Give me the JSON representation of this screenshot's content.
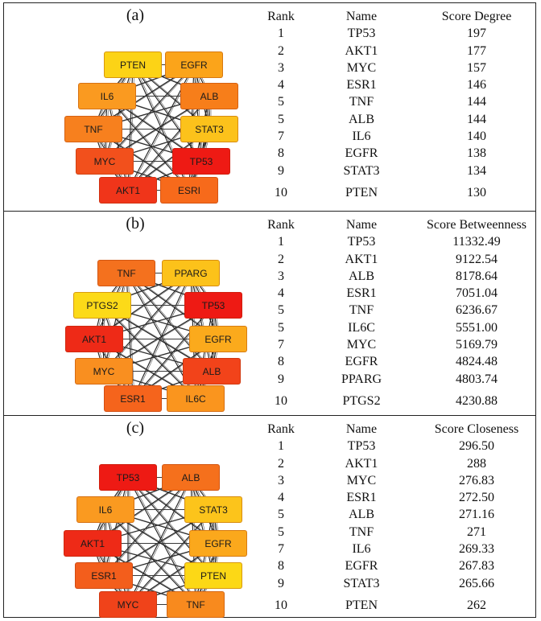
{
  "figure": {
    "panels": [
      {
        "label": "(a)",
        "table": {
          "headers": [
            "Rank",
            "Name",
            "Score Degree"
          ],
          "rows": [
            [
              "1",
              "TP53",
              "197"
            ],
            [
              "2",
              "AKT1",
              "177"
            ],
            [
              "3",
              "MYC",
              "157"
            ],
            [
              "4",
              "ESR1",
              "146"
            ],
            [
              "5",
              "TNF",
              "144"
            ],
            [
              "5",
              "ALB",
              "144"
            ],
            [
              "7",
              "IL6",
              "140"
            ],
            [
              "8",
              "EGFR",
              "138"
            ],
            [
              "9",
              "STAT3",
              "134"
            ],
            [
              "10",
              "PTEN",
              "130"
            ]
          ]
        },
        "network": {
          "nodes": [
            {
              "label": "PTEN",
              "color": "#FCD316"
            },
            {
              "label": "EGFR",
              "color": "#FBA41A"
            },
            {
              "label": "ALB",
              "color": "#F77E1A"
            },
            {
              "label": "STAT3",
              "color": "#FCC21B"
            },
            {
              "label": "TP53",
              "color": "#EE1A14"
            },
            {
              "label": "ESRI",
              "color": "#F76A1B"
            },
            {
              "label": "AKT1",
              "color": "#F0351A"
            },
            {
              "label": "MYC",
              "color": "#F2501C"
            },
            {
              "label": "TNF",
              "color": "#F7801E"
            },
            {
              "label": "IL6",
              "color": "#FA9A20"
            }
          ]
        }
      },
      {
        "label": "(b)",
        "table": {
          "headers": [
            "Rank",
            "Name",
            "Score Betweenness"
          ],
          "rows": [
            [
              "1",
              "TP53",
              "11332.49"
            ],
            [
              "2",
              "AKT1",
              "9122.54"
            ],
            [
              "3",
              "ALB",
              "8178.64"
            ],
            [
              "4",
              "ESR1",
              "7051.04"
            ],
            [
              "5",
              "TNF",
              "6236.67"
            ],
            [
              "5",
              "IL6C",
              "5551.00"
            ],
            [
              "7",
              "MYC",
              "5169.79"
            ],
            [
              "8",
              "EGFR",
              "4824.48"
            ],
            [
              "9",
              "PPARG",
              "4803.74"
            ],
            [
              "10",
              "PTGS2",
              "4230.88"
            ]
          ]
        },
        "network": {
          "nodes": [
            {
              "label": "TNF",
              "color": "#F4711E"
            },
            {
              "label": "PPARG",
              "color": "#FCC21A"
            },
            {
              "label": "TP53",
              "color": "#EE1A14"
            },
            {
              "label": "EGFR",
              "color": "#FBAA1C"
            },
            {
              "label": "ALB",
              "color": "#F2431A"
            },
            {
              "label": "IL6C",
              "color": "#FA951E"
            },
            {
              "label": "ESR1",
              "color": "#F5641C"
            },
            {
              "label": "MYC",
              "color": "#F98F20"
            },
            {
              "label": "AKT1",
              "color": "#EE2A17"
            },
            {
              "label": "PTGS2",
              "color": "#FCDA18"
            }
          ]
        }
      },
      {
        "label": "(c)",
        "table": {
          "headers": [
            "Rank",
            "Name",
            "Score Closeness"
          ],
          "rows": [
            [
              "1",
              "TP53",
              "296.50"
            ],
            [
              "2",
              "AKT1",
              "288"
            ],
            [
              "3",
              "MYC",
              "276.83"
            ],
            [
              "4",
              "ESR1",
              "272.50"
            ],
            [
              "5",
              "ALB",
              "271.16"
            ],
            [
              "5",
              "TNF",
              "271"
            ],
            [
              "7",
              "IL6",
              "269.33"
            ],
            [
              "8",
              "EGFR",
              "267.83"
            ],
            [
              "9",
              "STAT3",
              "265.66"
            ],
            [
              "10",
              "PTEN",
              "262"
            ]
          ]
        },
        "network": {
          "nodes": [
            {
              "label": "TP53",
              "color": "#EE1A14"
            },
            {
              "label": "ALB",
              "color": "#F5701C"
            },
            {
              "label": "STAT3",
              "color": "#FCC41B"
            },
            {
              "label": "EGFR",
              "color": "#FBA81C"
            },
            {
              "label": "PTEN",
              "color": "#FCD816"
            },
            {
              "label": "TNF",
              "color": "#F88A1E"
            },
            {
              "label": "MYC",
              "color": "#F0431A"
            },
            {
              "label": "ESR1",
              "color": "#F35E1C"
            },
            {
              "label": "AKT1",
              "color": "#EE2A17"
            },
            {
              "label": "IL6",
              "color": "#FA9A20"
            }
          ]
        }
      }
    ]
  }
}
